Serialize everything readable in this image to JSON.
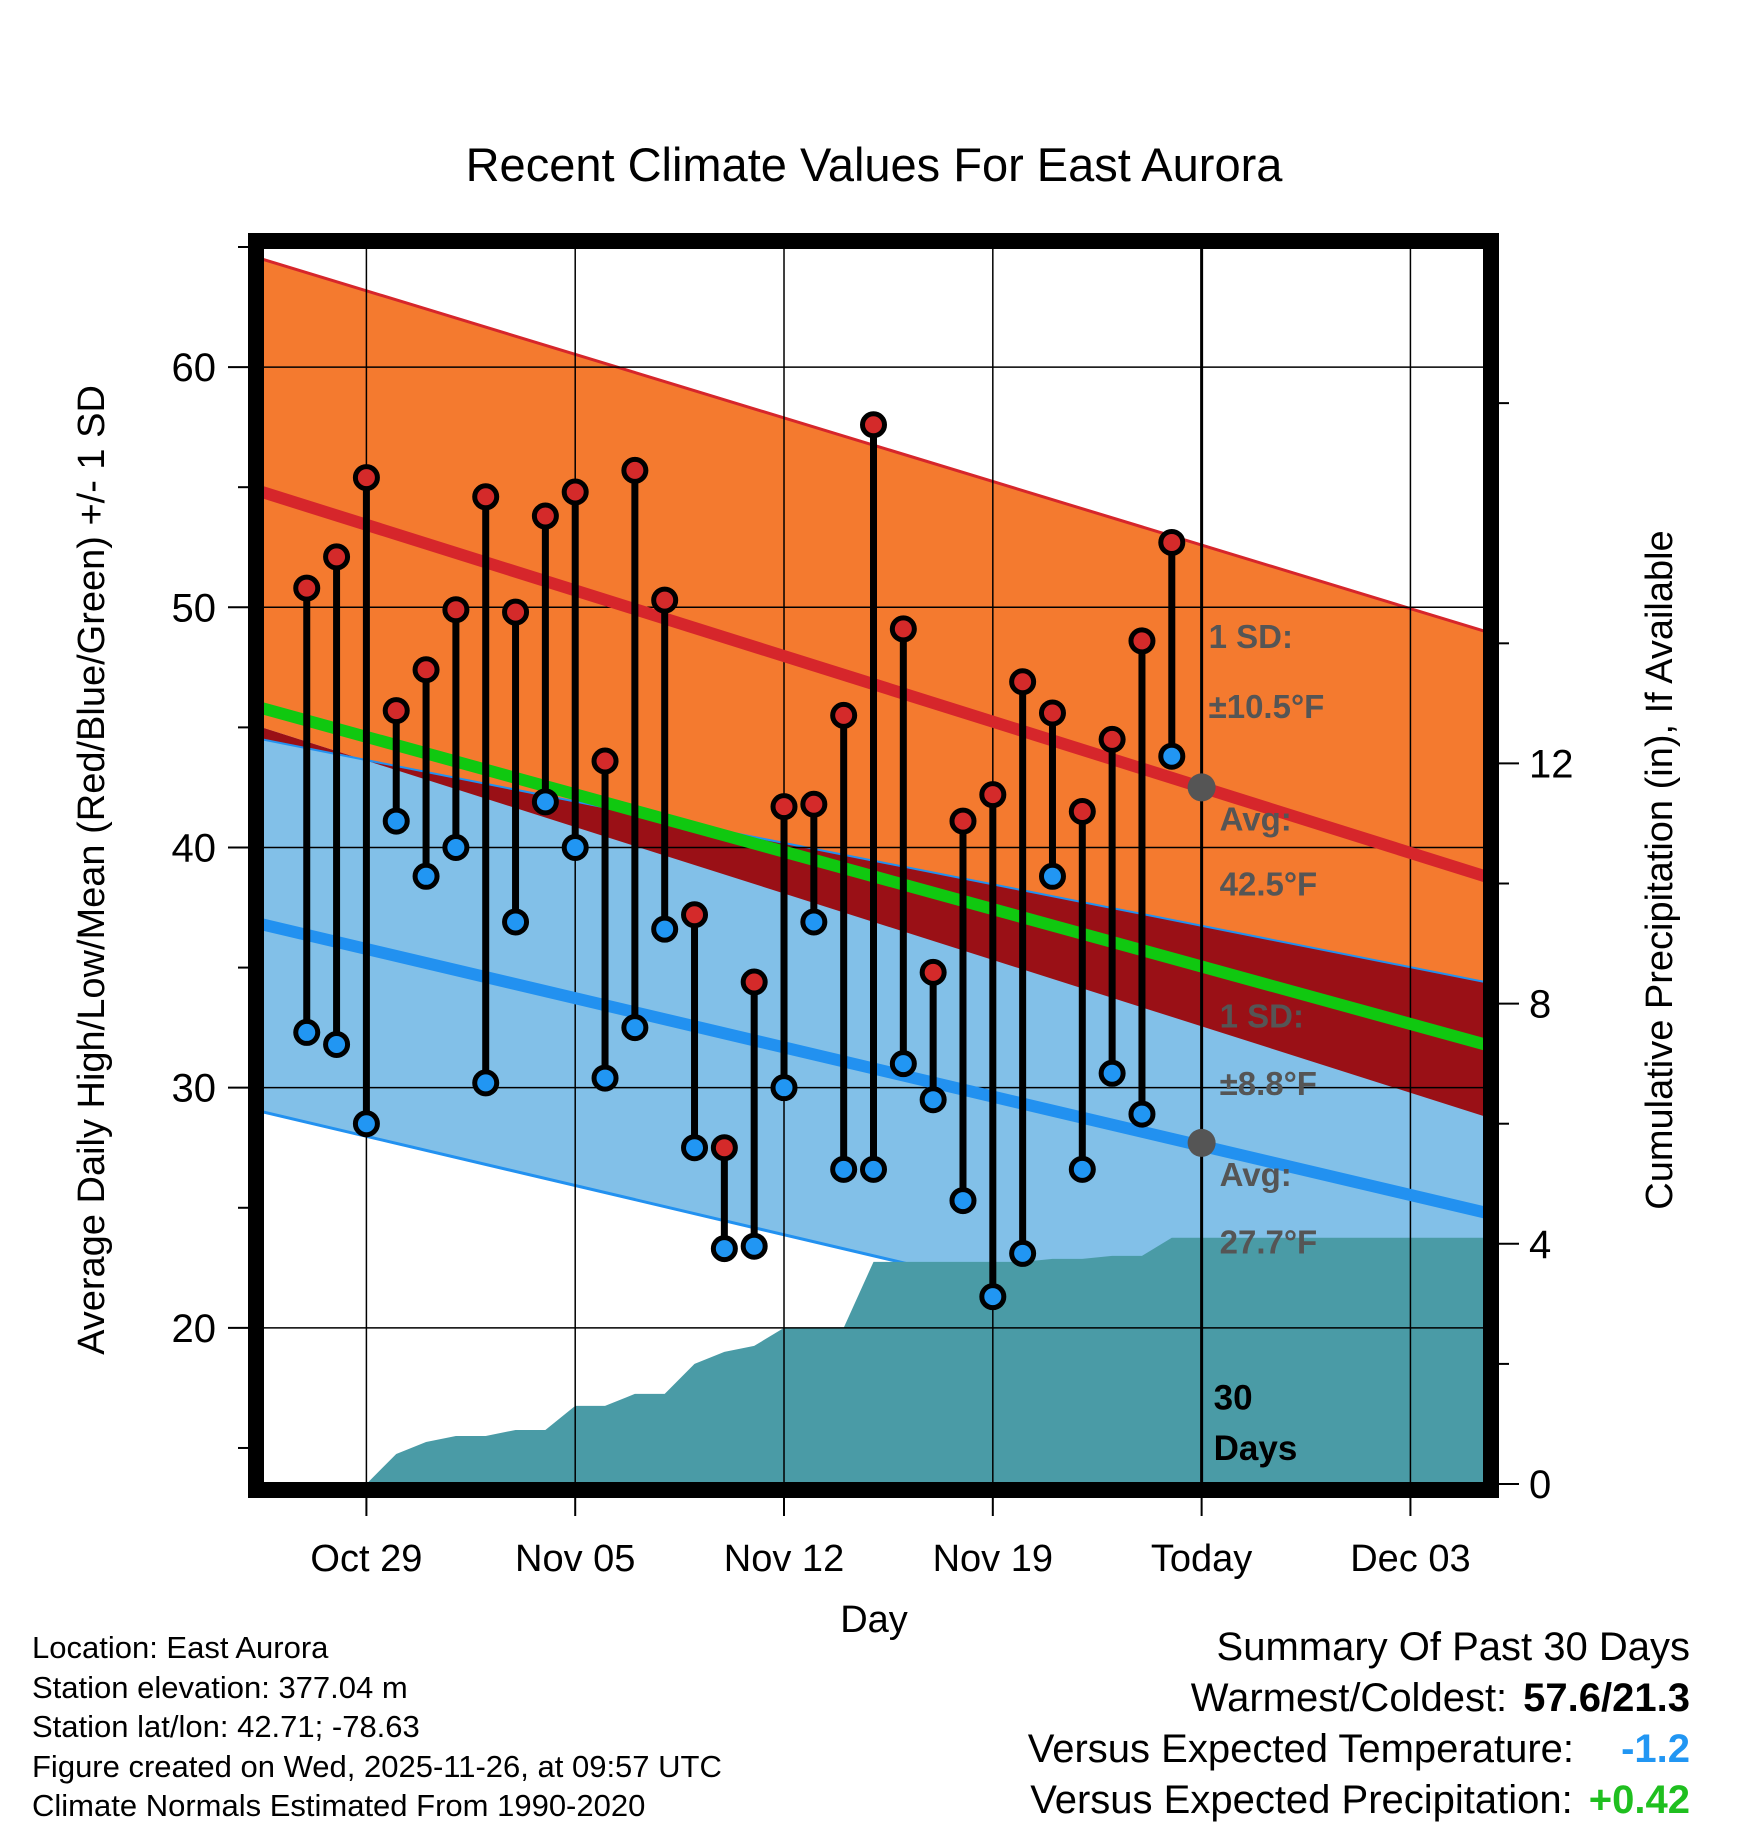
{
  "chart_data": {
    "type": "range-bar",
    "title": "Recent Climate Values For East Aurora",
    "xlabel": "Day",
    "ylabel": "Average Daily High/Low/Mean (Red/Blue/Green) +/- 1 SD",
    "y2label": "Cumulative Precipitation (in), If Available",
    "ylim": [
      13.5,
      65
    ],
    "yticks": [
      "20",
      "30",
      "40",
      "50",
      "60"
    ],
    "y2lim": [
      0,
      20.6
    ],
    "y2ticks": [
      "0",
      "4",
      "8",
      "12"
    ],
    "x_ticks": [
      {
        "day": 3,
        "label": "Oct 29"
      },
      {
        "day": 10,
        "label": "Nov 05"
      },
      {
        "day": 17,
        "label": "Nov 12"
      },
      {
        "day": 24,
        "label": "Nov 19"
      },
      {
        "day": 31,
        "label": "Today"
      },
      {
        "day": 38,
        "label": "Dec 03"
      }
    ],
    "today_day": 31,
    "days": [
      1,
      2,
      3,
      4,
      5,
      6,
      7,
      8,
      9,
      10,
      11,
      12,
      13,
      14,
      15,
      16,
      17,
      18,
      19,
      20,
      21,
      22,
      23,
      24,
      25,
      26,
      27,
      28,
      29,
      30
    ],
    "highs": [
      50.8,
      52.1,
      55.4,
      45.7,
      47.4,
      49.9,
      54.6,
      49.8,
      53.8,
      54.8,
      43.6,
      55.7,
      50.3,
      37.2,
      27.5,
      34.4,
      41.7,
      41.8,
      45.5,
      57.6,
      49.1,
      34.8,
      41.1,
      42.2,
      46.9,
      45.6,
      41.5,
      44.5,
      48.6,
      52.7
    ],
    "lows": [
      32.3,
      31.8,
      28.5,
      41.1,
      38.8,
      40.0,
      30.2,
      36.9,
      41.9,
      40.0,
      30.4,
      32.5,
      36.6,
      27.5,
      23.3,
      23.4,
      30.0,
      36.9,
      26.6,
      26.6,
      31.0,
      29.5,
      25.3,
      21.3,
      23.1,
      38.8,
      26.6,
      30.6,
      28.9,
      43.8
    ],
    "normals": {
      "x": [
        -0.5,
        40.5
      ],
      "high_avg": [
        54.8,
        38.8
      ],
      "high_upper": [
        64.5,
        49.0
      ],
      "high_lower": [
        45.0,
        28.8
      ],
      "low_avg": [
        36.8,
        24.8
      ],
      "low_upper": [
        44.5,
        34.4
      ],
      "low_lower": [
        29.0,
        17.0
      ],
      "mean_avg": [
        45.8,
        31.8
      ]
    },
    "precip_cumulative": [
      0,
      0,
      0,
      0.5,
      0.7,
      0.8,
      0.8,
      0.9,
      0.9,
      1.3,
      1.3,
      1.5,
      1.5,
      2.0,
      2.2,
      2.3,
      2.6,
      2.6,
      2.6,
      3.7,
      3.7,
      3.7,
      3.7,
      3.7,
      3.7,
      3.75,
      3.75,
      3.8,
      3.8,
      4.1,
      4.1
    ],
    "precip_total_color": "#4a9ba6",
    "annotations": {
      "high_sd": [
        "1 SD:",
        "±10.5°F"
      ],
      "high_avg": [
        "Avg:",
        "42.5°F"
      ],
      "low_sd": [
        "1 SD:",
        "±8.8°F"
      ],
      "low_avg": [
        "Avg:",
        "27.7°F"
      ],
      "days_label": [
        "30",
        "Days"
      ]
    },
    "today_high_avg": 42.5,
    "today_low_avg": 27.7,
    "colors": {
      "high_band": "#f47a2f",
      "high_line": "#d6262b",
      "low_band": "#82c0e8",
      "low_line": "#2291f0",
      "mean_line": "#10c810",
      "overlap": "#9a1016",
      "high_dot": "#d42a2a",
      "low_dot": "#2196f3",
      "annotation": "#555555",
      "positive": "#1fbf1f",
      "negative": "#2196f3"
    }
  },
  "footer": {
    "location": "Location: East Aurora",
    "elevation": "Station elevation: 377.04 m",
    "latlon": "Station lat/lon: 42.71; -78.63",
    "created": "Figure created on Wed, 2025-11-26, at 09:57 UTC",
    "normals": "Climate Normals Estimated From 1990-2020"
  },
  "summary": {
    "title": "Summary Of Past 30 Days",
    "warm_cold_label": "Warmest/Coldest:",
    "warm_cold_value": "57.6/21.3",
    "temp_label": "Versus Expected Temperature:",
    "temp_value": "-1.2",
    "precip_label": "Versus Expected Precipitation:",
    "precip_value": "+0.42"
  }
}
